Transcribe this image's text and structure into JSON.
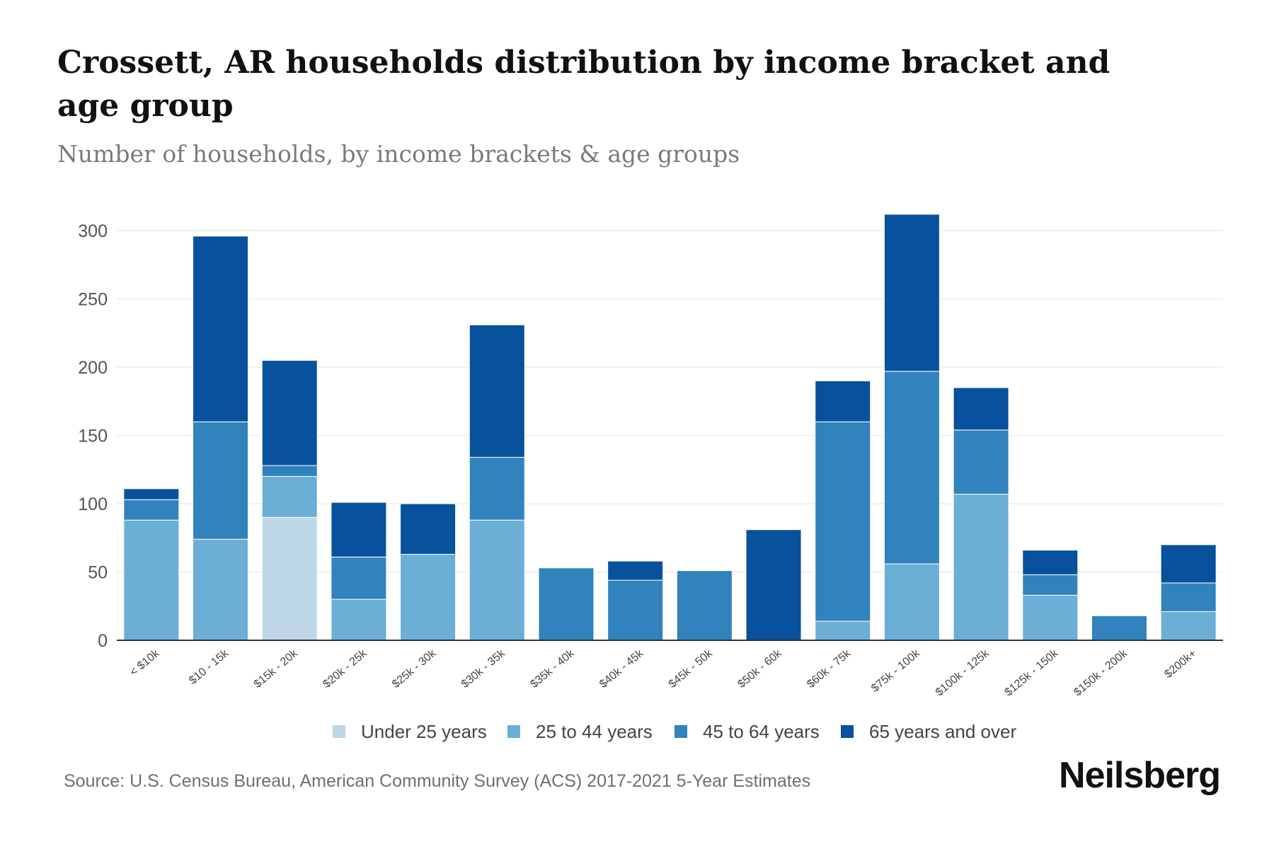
{
  "title": "Crossett, AR households distribution by income bracket and age group",
  "subtitle": "Number of households, by income brackets & age groups",
  "source": "Source: U.S. Census Bureau, American Community Survey (ACS) 2017-2021 5-Year Estimates",
  "brand": "Neilsberg",
  "chart_data": {
    "type": "bar",
    "stacked": true,
    "title": "Crossett, AR households distribution by income bracket and age group",
    "subtitle": "Number of households, by income brackets & age groups",
    "xlabel": "",
    "ylabel": "",
    "ylim": [
      0,
      300
    ],
    "yticks": [
      0,
      50,
      100,
      150,
      200,
      250,
      300
    ],
    "grid": true,
    "legend_position": "bottom",
    "categories": [
      "< $10k",
      "$10 - 15k",
      "$15k - 20k",
      "$20k - 25k",
      "$25k - 30k",
      "$30k - 35k",
      "$35k - 40k",
      "$40k - 45k",
      "$45k - 50k",
      "$50k - 60k",
      "$60k - 75k",
      "$75k - 100k",
      "$100k - 125k",
      "$125k - 150k",
      "$150k - 200k",
      "$200k+"
    ],
    "series": [
      {
        "name": "Under 25 years",
        "color": "#bdd7e7",
        "values": [
          0,
          0,
          90,
          0,
          0,
          0,
          0,
          0,
          0,
          0,
          0,
          0,
          0,
          0,
          0,
          0
        ]
      },
      {
        "name": "25 to 44 years",
        "color": "#6baed6",
        "values": [
          88,
          74,
          30,
          30,
          63,
          88,
          0,
          0,
          0,
          0,
          14,
          56,
          107,
          33,
          0,
          21
        ]
      },
      {
        "name": "45 to 64 years",
        "color": "#3182bd",
        "values": [
          15,
          86,
          8,
          31,
          0,
          46,
          53,
          44,
          51,
          0,
          146,
          141,
          47,
          15,
          18,
          21
        ]
      },
      {
        "name": "65 years and over",
        "color": "#08519c",
        "values": [
          8,
          136,
          77,
          40,
          37,
          97,
          0,
          14,
          0,
          81,
          30,
          115,
          31,
          18,
          0,
          28
        ]
      }
    ]
  }
}
